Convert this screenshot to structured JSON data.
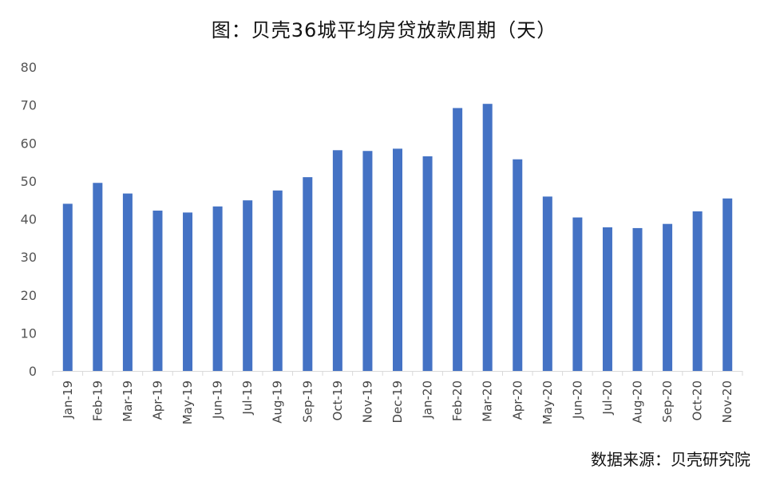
{
  "chart_data": {
    "type": "bar",
    "title": "图：贝壳36城平均房贷放款周期（天）",
    "source": "数据来源：贝壳研究院",
    "categories": [
      "Jan-19",
      "Feb-19",
      "Mar-19",
      "Apr-19",
      "May-19",
      "Jun-19",
      "Jul-19",
      "Aug-19",
      "Sep-19",
      "Oct-19",
      "Nov-19",
      "Dec-19",
      "Jan-20",
      "Feb-20",
      "Mar-20",
      "Apr-20",
      "May-20",
      "Jun-20",
      "Jul-20",
      "Aug-20",
      "Sep-20",
      "Oct-20",
      "Nov-20"
    ],
    "values": [
      44.0,
      49.5,
      46.7,
      42.2,
      41.7,
      43.3,
      44.9,
      47.5,
      51.0,
      58.1,
      57.9,
      58.5,
      56.5,
      69.2,
      70.3,
      55.7,
      45.9,
      40.4,
      37.8,
      37.6,
      38.7,
      42.0,
      45.4
    ],
    "yticks": [
      "0",
      "10",
      "20",
      "30",
      "40",
      "50",
      "60",
      "70",
      "80"
    ],
    "ylim": [
      0,
      80
    ],
    "xlabel": "",
    "ylabel": "",
    "grid": false,
    "legend": "none",
    "bar_color": "#4472C4",
    "axis_color": "#d9d9d9"
  }
}
